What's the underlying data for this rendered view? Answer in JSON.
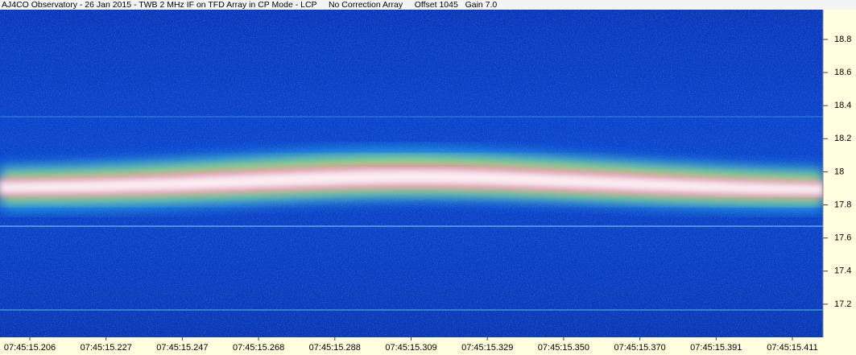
{
  "chart_data": {
    "type": "spectrogram",
    "title": "AJ4CO Observatory - 26 Jan 2015 - TWB 2 MHz IF on TFD Array in CP Mode - LCP     No Correction Array     Offset 1045   Gain 7.0",
    "categories": [
      "07:45:15.206",
      "07:45:15.227",
      "07:45:15.247",
      "07:45:15.268",
      "07:45:15.288",
      "07:45:15.309",
      "07:45:15.329",
      "07:45:15.350",
      "07:45:15.370",
      "07:45:15.391",
      "07:45:15.411"
    ],
    "ylim": [
      17.0,
      18.98
    ],
    "yticks": [
      17.2,
      17.4,
      17.6,
      17.8,
      18.0,
      18.2,
      18.4,
      18.6,
      18.8
    ]
  }
}
